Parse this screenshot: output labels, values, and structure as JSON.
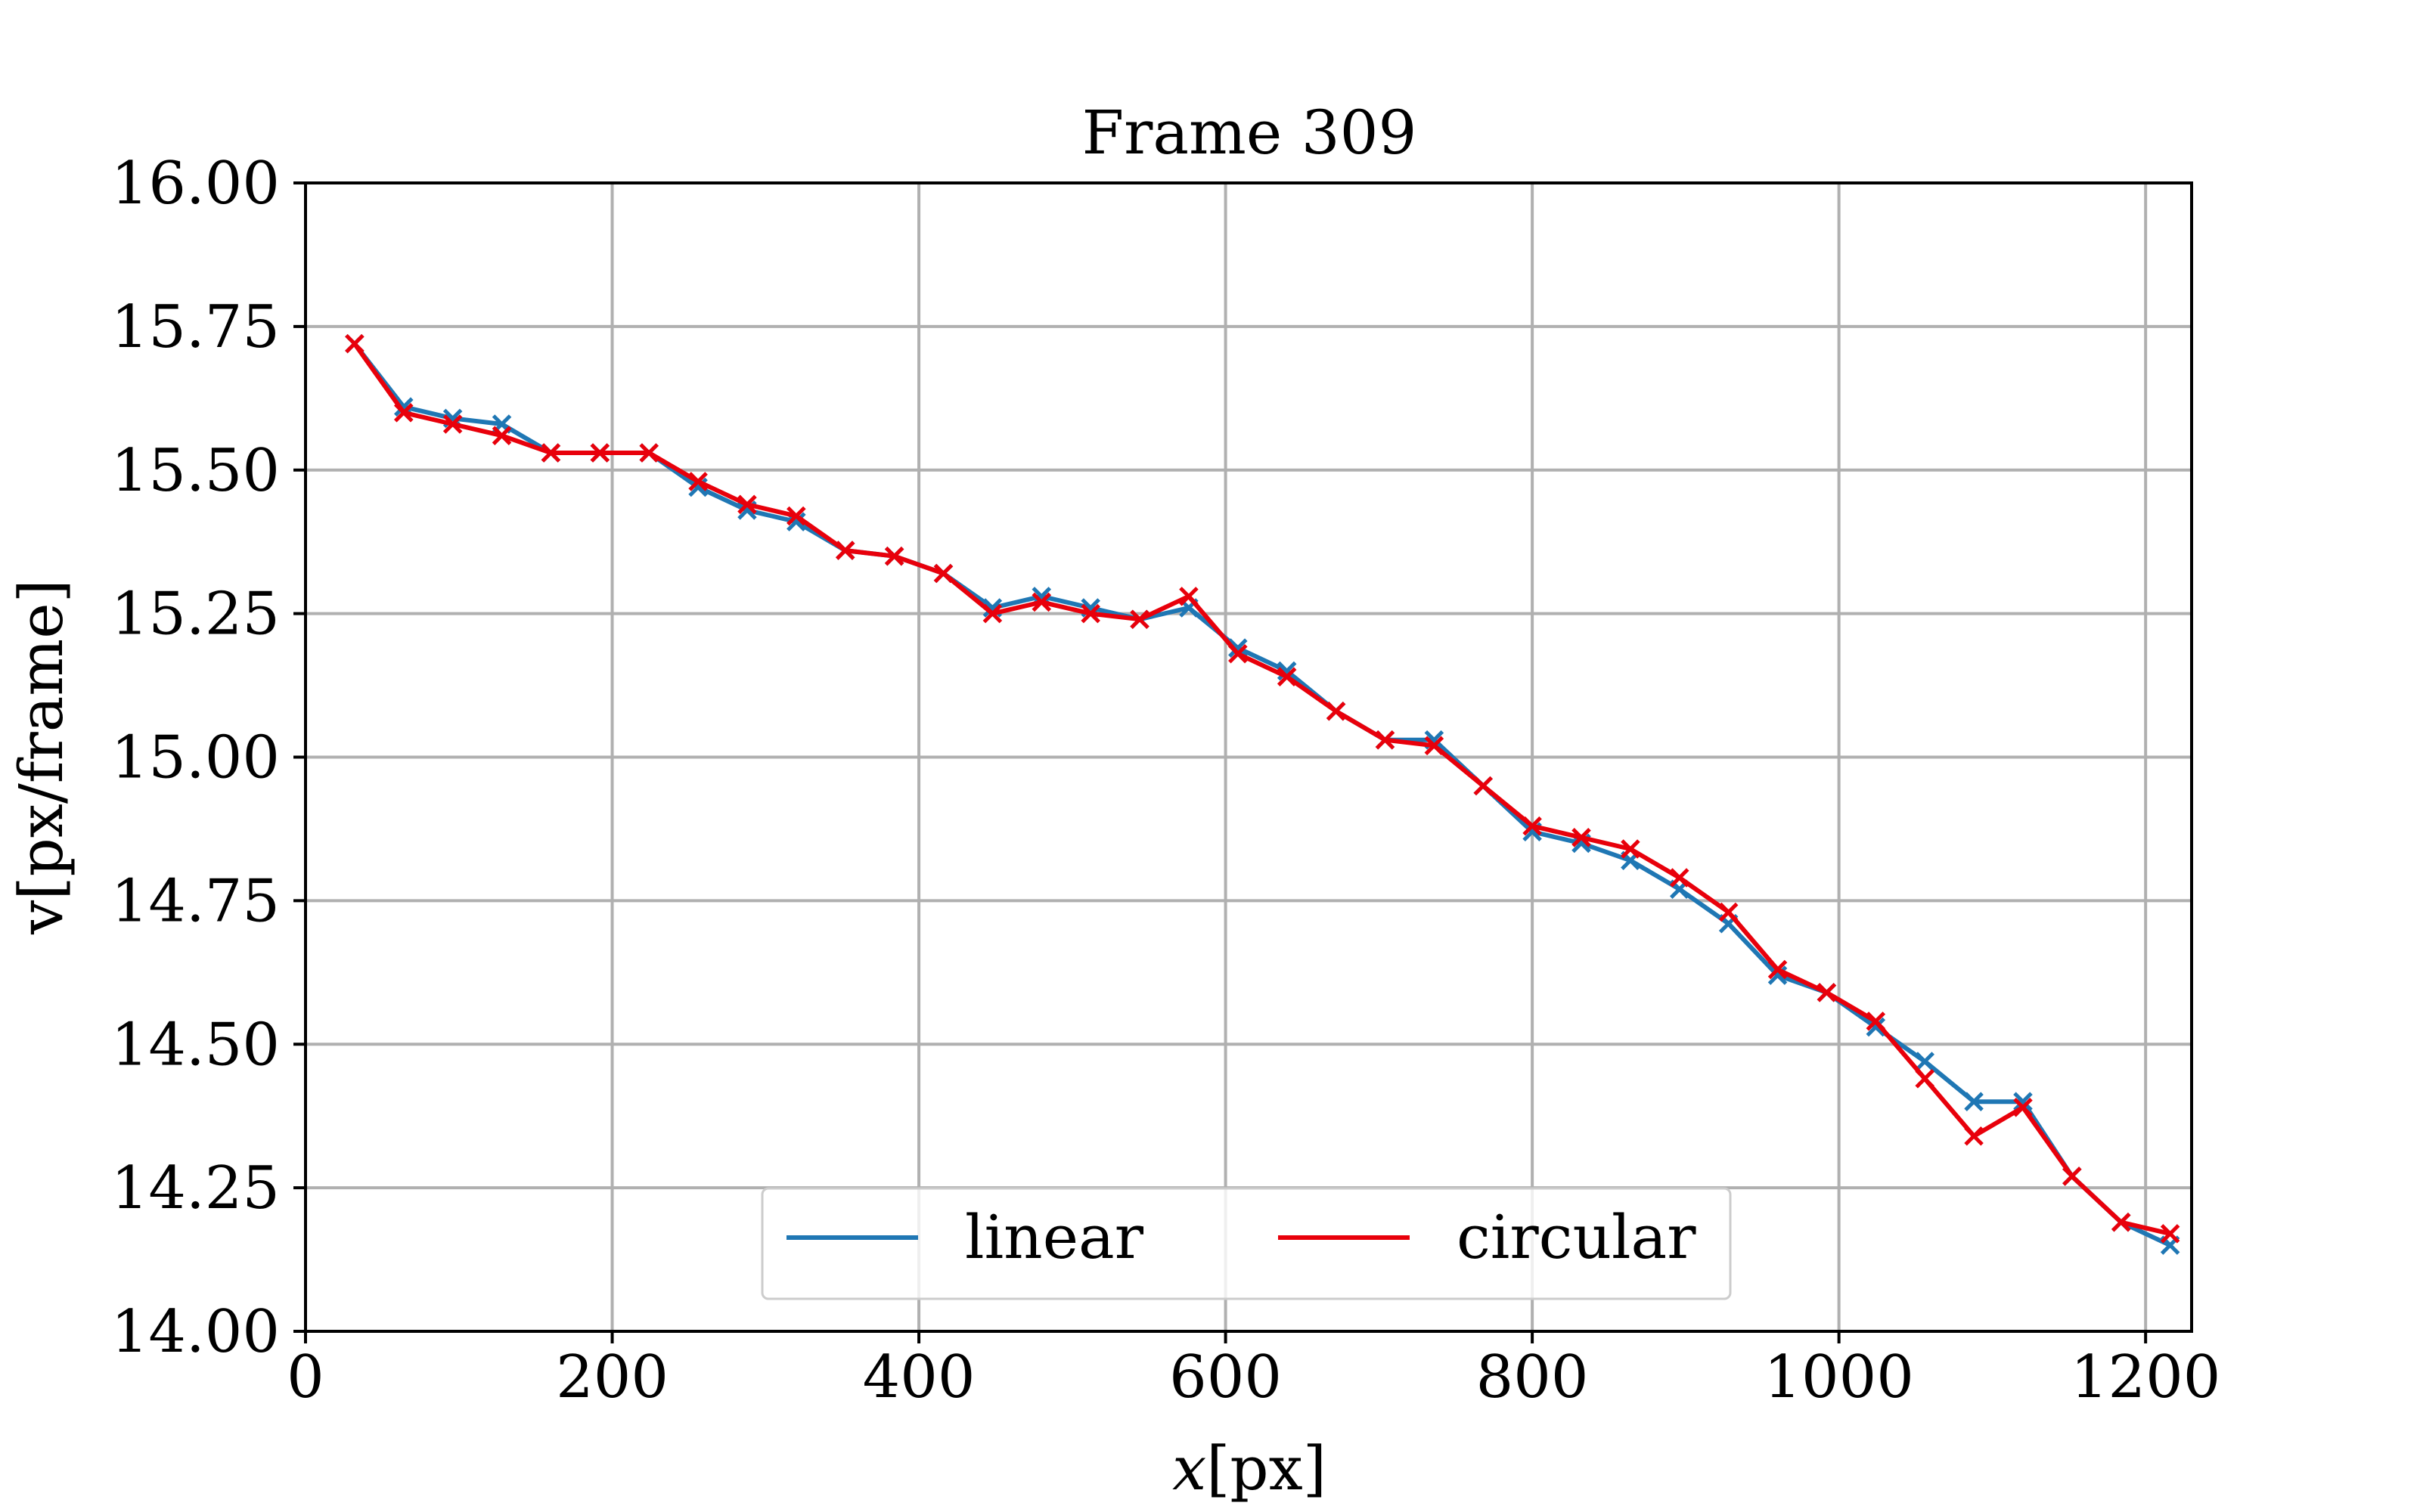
{
  "chart_data": {
    "type": "line",
    "title": "Frame 309",
    "xlabel_var": "x",
    "xlabel_unit": "[px]",
    "ylabel": "v[px/frame]",
    "xlim": [
      0,
      1230
    ],
    "ylim": [
      14.0,
      16.0
    ],
    "xticks": [
      0,
      200,
      400,
      600,
      800,
      1000,
      1200
    ],
    "xtick_labels": [
      "0",
      "200",
      "400",
      "600",
      "800",
      "1000",
      "1200"
    ],
    "yticks": [
      14.0,
      14.25,
      14.5,
      14.75,
      15.0,
      15.25,
      15.5,
      15.75,
      16.0
    ],
    "ytick_labels": [
      "14.00",
      "14.25",
      "14.50",
      "14.75",
      "15.00",
      "15.25",
      "15.50",
      "15.75",
      "16.00"
    ],
    "grid": true,
    "legend_position": "bottom-center",
    "marker": "x",
    "x": [
      32,
      64,
      96,
      128,
      160,
      192,
      224,
      256,
      288,
      320,
      352,
      384,
      416,
      448,
      480,
      512,
      544,
      576,
      608,
      640,
      672,
      704,
      736,
      768,
      800,
      832,
      864,
      896,
      928,
      960,
      992,
      1024,
      1056,
      1088,
      1120,
      1152,
      1184,
      1216
    ],
    "series": [
      {
        "name": "linear",
        "color": "#1f77b4",
        "values": [
          15.72,
          15.61,
          15.59,
          15.58,
          15.53,
          15.53,
          15.53,
          15.47,
          15.43,
          15.41,
          15.36,
          15.35,
          15.32,
          15.26,
          15.28,
          15.26,
          15.24,
          15.26,
          15.19,
          15.15,
          15.08,
          15.03,
          15.03,
          14.95,
          14.87,
          14.85,
          14.82,
          14.77,
          14.71,
          14.62,
          14.59,
          14.53,
          14.47,
          14.4,
          14.4,
          14.27,
          14.19,
          14.15
        ]
      },
      {
        "name": "circular",
        "color": "#e8000b",
        "values": [
          15.72,
          15.6,
          15.58,
          15.56,
          15.53,
          15.53,
          15.53,
          15.48,
          15.44,
          15.42,
          15.36,
          15.35,
          15.32,
          15.25,
          15.27,
          15.25,
          15.24,
          15.28,
          15.18,
          15.14,
          15.08,
          15.03,
          15.02,
          14.95,
          14.88,
          14.86,
          14.84,
          14.79,
          14.73,
          14.63,
          14.59,
          14.54,
          14.44,
          14.34,
          14.39,
          14.27,
          14.19,
          14.17
        ]
      }
    ]
  }
}
